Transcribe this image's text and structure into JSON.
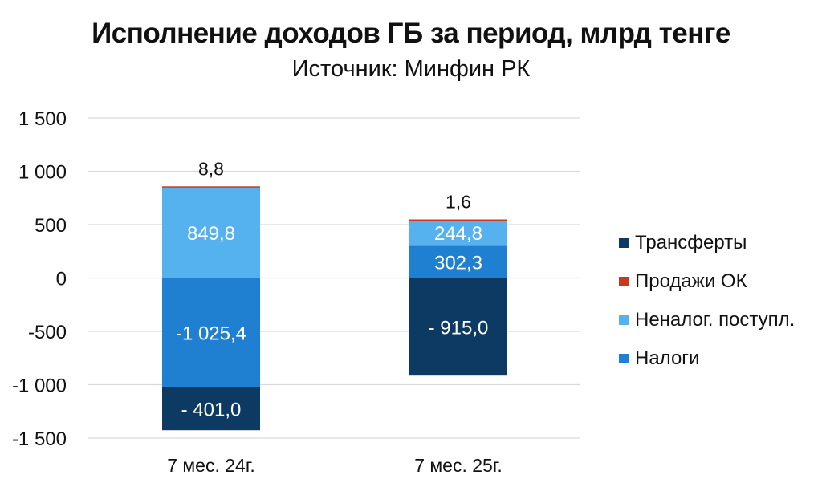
{
  "chart_data": {
    "type": "bar",
    "stacked": true,
    "title": "Исполнение доходов ГБ за период, млрд тенге",
    "subtitle": "Источник: Минфин РК",
    "categories": [
      "7 мес. 24г.",
      "7 мес. 25г."
    ],
    "ylim": [
      -1500,
      1500
    ],
    "yticks": [
      1500,
      1000,
      500,
      0,
      -500,
      -1000,
      -1500
    ],
    "ytick_labels": [
      "1 500",
      "1 000",
      "500",
      "0",
      "-500",
      "-1 000",
      "-1 500"
    ],
    "grid": true,
    "legend_position": "right",
    "series": [
      {
        "name": "Налоги",
        "color": "#1f7fd1",
        "values": [
          -1025.4,
          302.3
        ],
        "labels": [
          "-1 025,4",
          "302,3"
        ]
      },
      {
        "name": "Неналог. поступл.",
        "color": "#55b2ee",
        "values": [
          849.8,
          244.8
        ],
        "labels": [
          "849,8",
          "244,8"
        ]
      },
      {
        "name": "Продажи ОК",
        "color": "#c8381f",
        "values": [
          8.8,
          1.6
        ],
        "labels": [
          "8,8",
          "1,6"
        ]
      },
      {
        "name": "Трансферты",
        "color": "#0d3a62",
        "values": [
          -401.0,
          -915.0
        ],
        "labels": [
          "- 401,0",
          "- 915,0"
        ]
      }
    ],
    "legend_order": [
      "Трансферты",
      "Продажи ОК",
      "Неналог. поступл.",
      "Налоги"
    ]
  }
}
